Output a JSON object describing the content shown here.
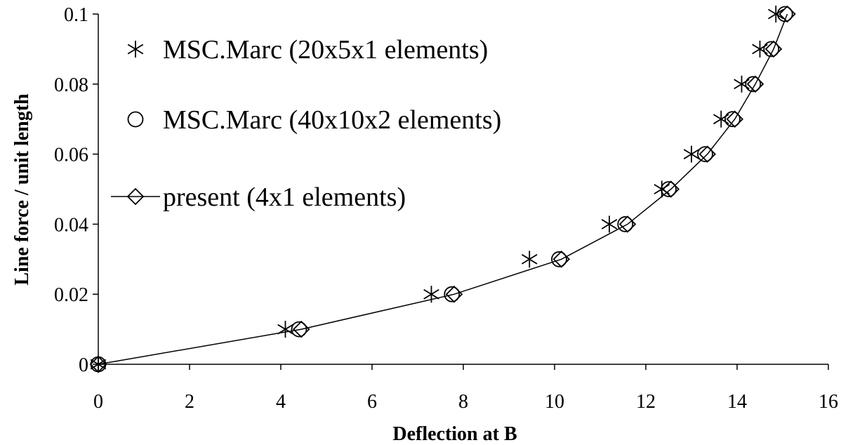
{
  "chart_data": {
    "type": "scatter",
    "xlabel": "Deflection at B",
    "ylabel": "Line force / unit length",
    "xlim": [
      0,
      16
    ],
    "ylim": [
      0,
      0.1
    ],
    "xticks": [
      0,
      2,
      4,
      6,
      8,
      10,
      12,
      14,
      16
    ],
    "xtick_labels": [
      "0",
      "2",
      "4",
      "6",
      "8",
      "10",
      "12",
      "14",
      "16"
    ],
    "yticks": [
      0,
      0.02,
      0.04,
      0.06,
      0.08,
      0.1
    ],
    "ytick_labels": [
      "0",
      "0.02",
      "0.04",
      "0.06",
      "0.08",
      "0.1"
    ],
    "grid": false,
    "legend_position": "top-left",
    "series": [
      {
        "name": "MSC.Marc (20x5x1 elements)",
        "marker": "asterisk",
        "line": false,
        "x": [
          0,
          4.1,
          7.3,
          9.45,
          11.2,
          12.35,
          13.0,
          13.65,
          14.1,
          14.5,
          14.85
        ],
        "y": [
          0,
          0.01,
          0.02,
          0.03,
          0.04,
          0.05,
          0.06,
          0.07,
          0.08,
          0.09,
          0.1
        ]
      },
      {
        "name": "MSC.Marc (40x10x2 elements)",
        "marker": "circle",
        "line": false,
        "x": [
          0,
          4.4,
          7.75,
          10.1,
          11.55,
          12.5,
          13.3,
          13.9,
          14.35,
          14.75,
          15.05
        ],
        "y": [
          0,
          0.01,
          0.02,
          0.03,
          0.04,
          0.05,
          0.06,
          0.07,
          0.08,
          0.09,
          0.1
        ]
      },
      {
        "name": "present (4x1 elements)",
        "marker": "diamond",
        "line": true,
        "x": [
          0,
          4.45,
          7.8,
          10.15,
          11.6,
          12.55,
          13.35,
          13.95,
          14.4,
          14.8,
          15.1
        ],
        "y": [
          0,
          0.01,
          0.02,
          0.03,
          0.04,
          0.05,
          0.06,
          0.07,
          0.08,
          0.09,
          0.1
        ]
      }
    ]
  },
  "colors": {
    "ink": "#000000",
    "background": "#ffffff"
  }
}
